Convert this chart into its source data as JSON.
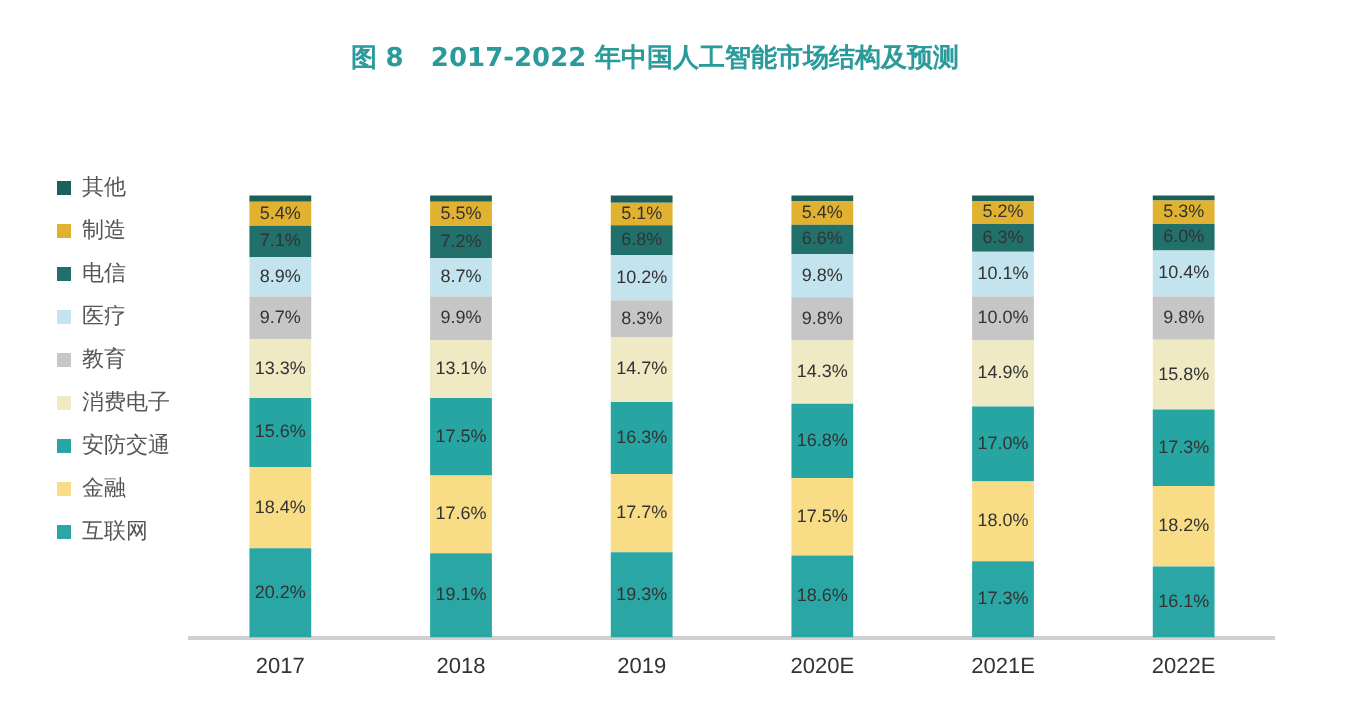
{
  "chart_data": {
    "type": "bar",
    "title": "图 8   2017-2022 年中国人工智能市场结构及预测",
    "stacked": true,
    "legend": "left",
    "grid": false,
    "categories": [
      "2017",
      "2018",
      "2019",
      "2020E",
      "2021E",
      "2022E"
    ],
    "series": [
      {
        "name": "互联网",
        "color": "#2aa7a4",
        "values": [
          20.2,
          19.1,
          19.3,
          18.6,
          17.3,
          16.1
        ],
        "value_labels": [
          "20.2%",
          "19.1%",
          "19.3%",
          "18.6%",
          "17.3%",
          "16.1%"
        ]
      },
      {
        "name": "金融",
        "color": "#f8dc86",
        "values": [
          18.4,
          17.6,
          17.7,
          17.5,
          18.0,
          18.2
        ],
        "value_labels": [
          "18.4%",
          "17.6%",
          "17.7%",
          "17.5%",
          "18.0%",
          "18.2%"
        ]
      },
      {
        "name": "安防交通",
        "color": "#27a5a2",
        "values": [
          15.6,
          17.5,
          16.3,
          16.8,
          17.0,
          17.3
        ],
        "value_labels": [
          "15.6%",
          "17.5%",
          "16.3%",
          "16.8%",
          "17.0%",
          "17.3%"
        ]
      },
      {
        "name": "消费电子",
        "color": "#efe9c4",
        "values": [
          13.3,
          13.1,
          14.7,
          14.3,
          14.9,
          15.8
        ],
        "value_labels": [
          "13.3%",
          "13.1%",
          "14.7%",
          "14.3%",
          "14.9%",
          "15.8%"
        ]
      },
      {
        "name": "教育",
        "color": "#c6c6c6",
        "values": [
          9.7,
          9.9,
          8.3,
          9.8,
          10.0,
          9.8
        ],
        "value_labels": [
          "9.7%",
          "9.9%",
          "8.3%",
          "9.8%",
          "10.0%",
          "9.8%"
        ]
      },
      {
        "name": "医疗",
        "color": "#c3e4ee",
        "values": [
          8.9,
          8.7,
          10.2,
          9.8,
          10.1,
          10.4
        ],
        "value_labels": [
          "8.9%",
          "8.7%",
          "10.2%",
          "9.8%",
          "10.1%",
          "10.4%"
        ]
      },
      {
        "name": "电信",
        "color": "#21706b",
        "values": [
          7.1,
          7.2,
          6.8,
          6.6,
          6.3,
          6.0
        ],
        "value_labels": [
          "7.1%",
          "7.2%",
          "6.8%",
          "6.6%",
          "6.3%",
          "6.0%"
        ]
      },
      {
        "name": "制造",
        "color": "#e0b22f",
        "values": [
          5.4,
          5.5,
          5.1,
          5.4,
          5.2,
          5.3
        ],
        "value_labels": [
          "5.4%",
          "5.5%",
          "5.1%",
          "5.4%",
          "5.2%",
          "5.3%"
        ]
      },
      {
        "name": "其他",
        "color": "#1d5f5b",
        "values": [
          1.4,
          1.4,
          1.6,
          1.2,
          1.2,
          1.1
        ]
      }
    ]
  }
}
